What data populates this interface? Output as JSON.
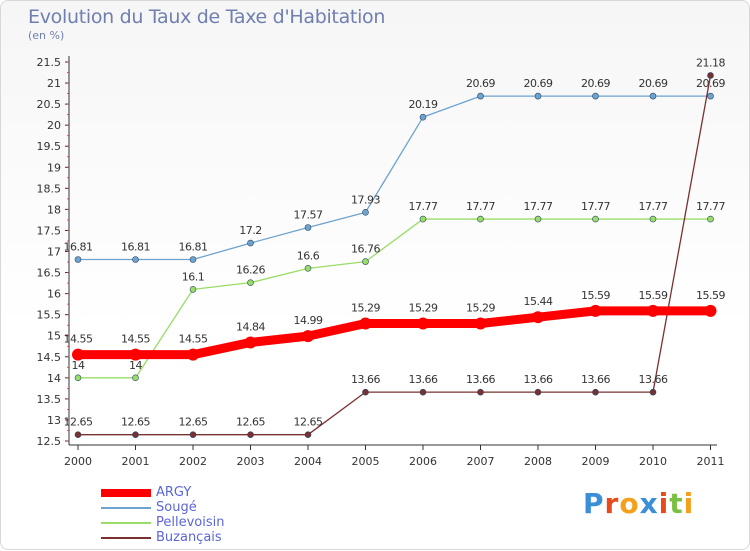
{
  "chart_data": {
    "type": "line",
    "title": "Evolution du Taux de Taxe d'Habitation",
    "unit_label": "(en %)",
    "x": [
      "2000",
      "2001",
      "2002",
      "2003",
      "2004",
      "2005",
      "2006",
      "2007",
      "2008",
      "2009",
      "2010",
      "2011"
    ],
    "ylim": [
      12.5,
      21.5
    ],
    "yticks": [
      "12.5",
      "13",
      "13.5",
      "14",
      "14.5",
      "15",
      "15.5",
      "16",
      "16.5",
      "17",
      "17.5",
      "18",
      "18.5",
      "19",
      "19.5",
      "20",
      "20.5",
      "21",
      "21.5"
    ],
    "grid": false,
    "legend_position": "bottom-left",
    "series": [
      {
        "name": "ARGY",
        "color": "#ff0000",
        "values": [
          14.55,
          14.55,
          14.55,
          14.84,
          14.99,
          15.29,
          15.29,
          15.29,
          15.44,
          15.59,
          15.59,
          15.59
        ],
        "labels": [
          "14.55",
          "14.55",
          "14.55",
          "14.84",
          "14.99",
          "15.29",
          "15.29",
          "15.29",
          "15.44",
          "15.59",
          "15.59",
          "15.59"
        ]
      },
      {
        "name": "Sougé",
        "color": "#6fa3cf",
        "values": [
          16.81,
          16.81,
          16.81,
          17.2,
          17.57,
          17.93,
          20.19,
          20.69,
          20.69,
          20.69,
          20.69,
          20.69
        ],
        "labels": [
          "16.81",
          "16.81",
          "16.81",
          "17.2",
          "17.57",
          "17.93",
          "20.19",
          "20.69",
          "20.69",
          "20.69",
          "20.69",
          "20.69"
        ]
      },
      {
        "name": "Pellevoisin",
        "color": "#99dd66",
        "values": [
          14,
          14,
          16.1,
          16.26,
          16.6,
          16.76,
          17.77,
          17.77,
          17.77,
          17.77,
          17.77,
          17.77
        ],
        "labels": [
          "14",
          "14",
          "16.1",
          "16.26",
          "16.6",
          "16.76",
          "17.77",
          "17.77",
          "17.77",
          "17.77",
          "17.77",
          "17.77"
        ]
      },
      {
        "name": "Buzançais",
        "color": "#7a3030",
        "values": [
          12.65,
          12.65,
          12.65,
          12.65,
          12.65,
          13.66,
          13.66,
          13.66,
          13.66,
          13.66,
          13.66,
          21.18
        ],
        "labels": [
          "12.65",
          "12.65",
          "12.65",
          "12.65",
          "12.65",
          "13.66",
          "13.66",
          "13.66",
          "13.66",
          "13.66",
          "13.66",
          "21.18"
        ]
      }
    ]
  },
  "legend": [
    {
      "name": "ARGY",
      "color": "#ff0000"
    },
    {
      "name": "Sougé",
      "color": "#6fa3cf"
    },
    {
      "name": "Pellevoisin",
      "color": "#99dd66"
    },
    {
      "name": "Buzançais",
      "color": "#7a3030"
    }
  ],
  "logo": {
    "letters": [
      "P",
      "r",
      "o",
      "x",
      "i",
      "t",
      "i"
    ],
    "colors": [
      "#3a8fd8",
      "#e84a1a",
      "#f5a01a",
      "#3a8fd8",
      "#e84a1a",
      "#7ac143",
      "#f5a01a"
    ]
  }
}
